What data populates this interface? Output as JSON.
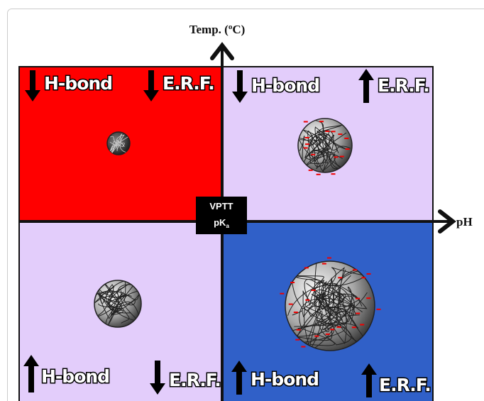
{
  "axes": {
    "y_label": {
      "before": "Temp. (",
      "sup": "o",
      "after": "C)"
    },
    "x_label": "pH"
  },
  "center": {
    "line1": "VPTT",
    "line2": {
      "main": "pK",
      "sub": "a"
    }
  },
  "quadrants": [
    {
      "labels": [
        "H-bond",
        "E.R.F."
      ]
    },
    {
      "labels": [
        "H-bond",
        "E.R.F."
      ]
    },
    {
      "labels": [
        "H-bond",
        "E.R.F."
      ]
    },
    {
      "labels": [
        "H-bond",
        "E.R.F."
      ]
    }
  ]
}
